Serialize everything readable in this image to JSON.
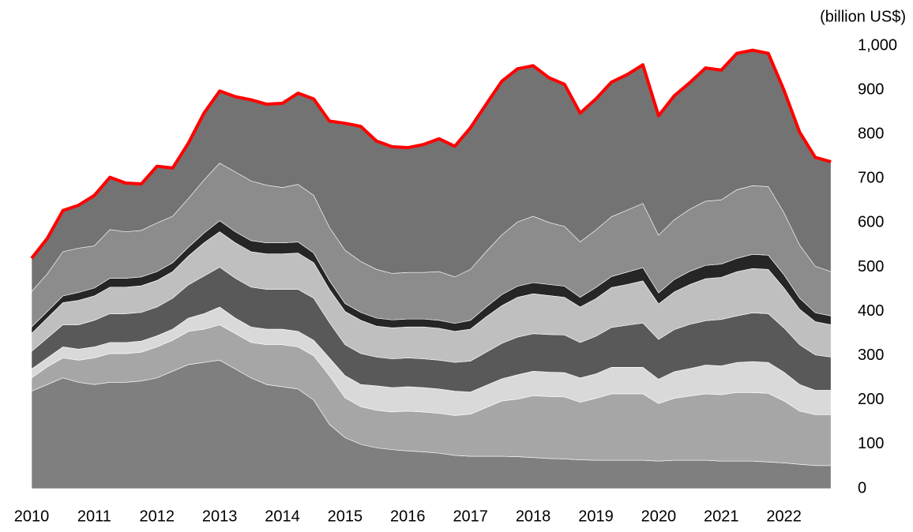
{
  "chart_data": {
    "type": "stacked_area",
    "y_axis_label": "(billion US$)",
    "x": [
      2010,
      2010.25,
      2010.5,
      2010.75,
      2011,
      2011.25,
      2011.5,
      2011.75,
      2012,
      2012.25,
      2012.5,
      2012.75,
      2013,
      2013.25,
      2013.5,
      2013.75,
      2014,
      2014.25,
      2014.5,
      2014.75,
      2015,
      2015.25,
      2015.5,
      2015.75,
      2016,
      2016.25,
      2016.5,
      2016.75,
      2017,
      2017.25,
      2017.5,
      2017.75,
      2018,
      2018.25,
      2018.5,
      2018.75,
      2019,
      2019.25,
      2019.5,
      2019.75,
      2020,
      2020.25,
      2020.5,
      2020.75,
      2021,
      2021.25,
      2021.5,
      2021.75,
      2022,
      2022.25,
      2022.5,
      2022.75
    ],
    "xlim": [
      2010,
      2023
    ],
    "xticks": [
      2010,
      2011,
      2012,
      2013,
      2014,
      2015,
      2016,
      2017,
      2018,
      2019,
      2020,
      2021,
      2022
    ],
    "ylim": [
      0,
      1000
    ],
    "yticks": [
      0,
      100,
      200,
      300,
      400,
      500,
      600,
      700,
      800,
      900,
      {
        "value": 1000,
        "label": "1,000"
      }
    ],
    "grid": false,
    "outline_color": "#ff0000",
    "series": [
      {
        "color": "#7f7f7f",
        "values": [
          220,
          235,
          250,
          240,
          235,
          240,
          240,
          243,
          250,
          265,
          280,
          285,
          290,
          270,
          250,
          235,
          230,
          225,
          200,
          145,
          115,
          100,
          92,
          88,
          85,
          83,
          80,
          75,
          73,
          73,
          73,
          72,
          70,
          68,
          67,
          65,
          64,
          64,
          64,
          64,
          62,
          64,
          64,
          64,
          62,
          62,
          62,
          60,
          58,
          55,
          52,
          52
        ]
      },
      {
        "color": "#a6a6a6",
        "values": [
          30,
          40,
          45,
          50,
          60,
          65,
          65,
          65,
          70,
          70,
          75,
          75,
          80,
          80,
          80,
          90,
          95,
          95,
          100,
          110,
          90,
          85,
          85,
          85,
          90,
          90,
          90,
          90,
          95,
          110,
          125,
          130,
          140,
          140,
          140,
          130,
          140,
          150,
          150,
          150,
          130,
          140,
          145,
          150,
          150,
          155,
          155,
          155,
          140,
          120,
          115,
          115
        ]
      },
      {
        "color": "#d9d9d9",
        "values": [
          20,
          20,
          25,
          25,
          25,
          25,
          25,
          25,
          25,
          25,
          30,
          35,
          40,
          35,
          35,
          35,
          35,
          35,
          35,
          40,
          50,
          50,
          55,
          55,
          55,
          55,
          55,
          55,
          50,
          50,
          50,
          55,
          55,
          55,
          55,
          55,
          55,
          60,
          60,
          60,
          55,
          60,
          62,
          65,
          65,
          68,
          70,
          70,
          65,
          60,
          55,
          55
        ]
      },
      {
        "color": "#595959",
        "values": [
          40,
          45,
          50,
          55,
          60,
          65,
          65,
          65,
          65,
          70,
          75,
          85,
          90,
          90,
          90,
          90,
          90,
          95,
          95,
          80,
          70,
          70,
          65,
          65,
          65,
          65,
          65,
          65,
          70,
          75,
          80,
          85,
          85,
          85,
          85,
          80,
          85,
          90,
          95,
          100,
          90,
          95,
          100,
          100,
          105,
          105,
          110,
          110,
          100,
          90,
          80,
          75
        ]
      },
      {
        "color": "#bfbfbf",
        "values": [
          40,
          45,
          50,
          55,
          55,
          60,
          60,
          60,
          60,
          60,
          65,
          75,
          80,
          80,
          80,
          80,
          80,
          82,
          80,
          75,
          75,
          75,
          70,
          70,
          70,
          72,
          72,
          70,
          72,
          80,
          85,
          90,
          90,
          88,
          85,
          80,
          85,
          90,
          92,
          95,
          80,
          85,
          90,
          95,
          95,
          100,
          100,
          100,
          90,
          80,
          75,
          73
        ]
      },
      {
        "color": "#262626",
        "values": [
          15,
          15,
          15,
          18,
          18,
          20,
          20,
          20,
          20,
          20,
          20,
          22,
          25,
          25,
          25,
          25,
          25,
          25,
          22,
          20,
          18,
          18,
          18,
          18,
          18,
          18,
          18,
          18,
          20,
          22,
          25,
          25,
          25,
          25,
          25,
          22,
          25,
          25,
          28,
          30,
          25,
          28,
          30,
          30,
          30,
          30,
          32,
          32,
          30,
          25,
          20,
          20
        ]
      },
      {
        "color": "#8c8c8c",
        "values": [
          80,
          85,
          100,
          100,
          95,
          110,
          105,
          105,
          110,
          105,
          110,
          120,
          130,
          135,
          135,
          130,
          125,
          130,
          130,
          120,
          120,
          115,
          110,
          105,
          105,
          105,
          110,
          105,
          115,
          125,
          135,
          145,
          150,
          140,
          135,
          125,
          130,
          135,
          140,
          145,
          130,
          135,
          140,
          145,
          145,
          155,
          155,
          155,
          140,
          120,
          105,
          100
        ]
      },
      {
        "color": "#737373",
        "values": [
          75,
          80,
          93,
          97,
          114,
          118,
          110,
          105,
          128,
          109,
          125,
          151,
          163,
          170,
          183,
          183,
          190,
          206,
          218,
          240,
          287,
          305,
          290,
          286,
          282,
          289,
          300,
          295,
          320,
          333,
          347,
          346,
          340,
          327,
          321,
          291,
          296,
          304,
          306,
          313,
          270,
          280,
          286,
          301,
          293,
          308,
          306,
          301,
          277,
          255,
          246,
          248
        ]
      }
    ]
  }
}
